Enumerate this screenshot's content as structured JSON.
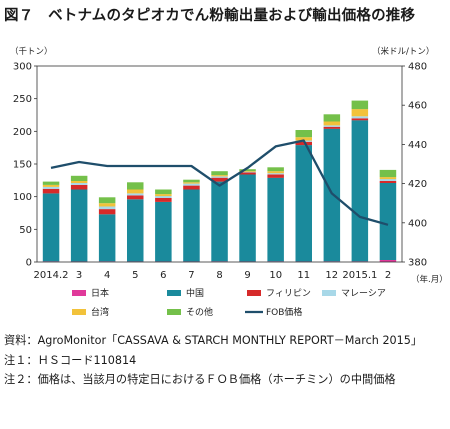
{
  "title": "図７　ベトナムのタピオカでん粉輸出量および輸出価格の推移",
  "chart_data": {
    "type": "bar",
    "stacked": true,
    "categories": [
      "2014.2",
      "3",
      "4",
      "5",
      "6",
      "7",
      "8",
      "9",
      "10",
      "11",
      "12",
      "2015.1",
      "2"
    ],
    "x_unit": "（年.月）",
    "y_left": {
      "label": "（千トン）",
      "ylim": [
        0,
        300
      ],
      "ticks": [
        0,
        50,
        100,
        150,
        200,
        250,
        300
      ]
    },
    "y_right": {
      "label": "（米ドル/トン）",
      "ylim": [
        380,
        480
      ],
      "ticks": [
        380,
        400,
        420,
        440,
        460,
        480
      ]
    },
    "grid": false,
    "legend_position": "bottom",
    "series": [
      {
        "name": "日本",
        "color": "#e0399a",
        "axis": "left",
        "values": [
          1,
          1,
          1,
          1,
          1,
          1,
          1,
          1,
          1,
          1,
          1,
          1,
          3
        ]
      },
      {
        "name": "中国",
        "color": "#1a8a9c",
        "axis": "left",
        "values": [
          104,
          110,
          72,
          95,
          91,
          110,
          122,
          133,
          128,
          178,
          203,
          216,
          118
        ]
      },
      {
        "name": "フィリピン",
        "color": "#d62a2a",
        "axis": "left",
        "values": [
          7,
          7,
          8,
          6,
          6,
          6,
          6,
          3,
          5,
          5,
          3,
          3,
          3
        ]
      },
      {
        "name": "マレーシア",
        "color": "#a8d8e8",
        "axis": "left",
        "values": [
          3,
          3,
          4,
          3,
          3,
          3,
          2,
          1,
          2,
          2,
          2,
          3,
          3
        ]
      },
      {
        "name": "台湾",
        "color": "#f2c23a",
        "axis": "left",
        "values": [
          3,
          3,
          5,
          6,
          3,
          2,
          2,
          1,
          3,
          5,
          6,
          11,
          3
        ]
      },
      {
        "name": "その他",
        "color": "#74c04a",
        "axis": "left",
        "values": [
          5,
          8,
          9,
          11,
          7,
          4,
          6,
          3,
          6,
          11,
          11,
          13,
          11
        ]
      },
      {
        "name": "FOB価格",
        "color": "#1f4e6b",
        "axis": "right",
        "type": "line",
        "values": [
          428,
          431,
          429,
          429,
          429,
          429,
          419,
          428,
          439,
          442,
          415,
          403,
          399
        ]
      }
    ]
  },
  "notes": [
    {
      "label": "資料：",
      "text": "AgroMonitor「CASSAVA & STARCH MONTHLY REPORT－March 2015」"
    },
    {
      "label": "注１：",
      "text": "ＨＳコード110814"
    },
    {
      "label": "注２：",
      "text": "価格は、当該月の特定日におけるＦＯＢ価格（ホーチミン）の中間価格"
    }
  ]
}
